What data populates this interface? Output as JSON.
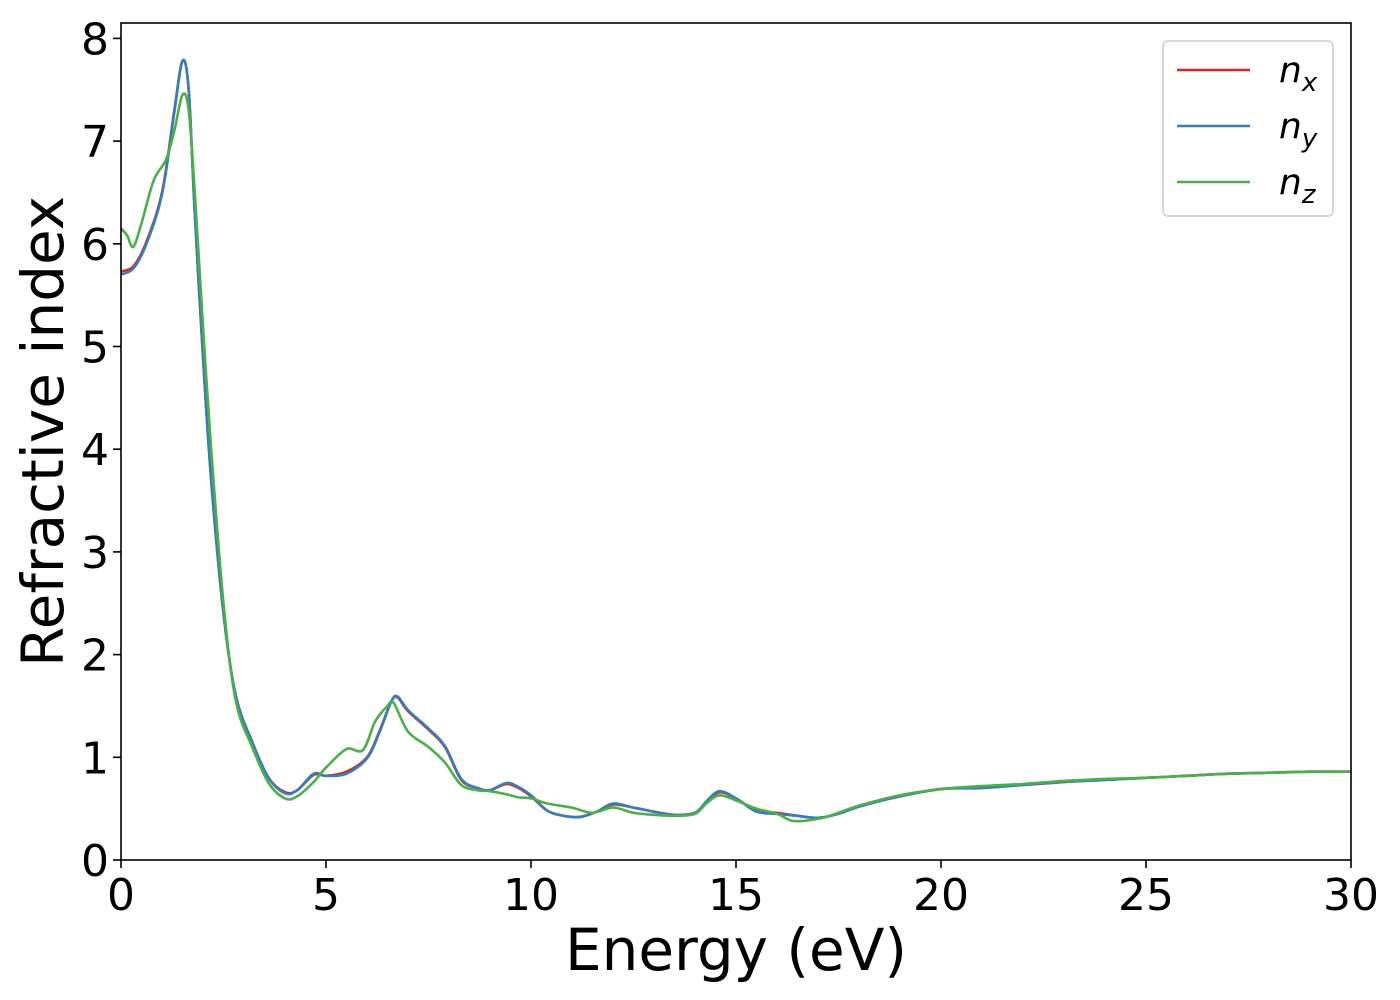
{
  "chart_data": {
    "type": "line",
    "title": "",
    "xlabel": "Energy (eV)",
    "ylabel": "Refractive index",
    "xlim": [
      0,
      30
    ],
    "ylim": [
      0,
      8.15
    ],
    "xticks": [
      0,
      5,
      10,
      15,
      20,
      25,
      30
    ],
    "yticks": [
      0,
      1,
      2,
      3,
      4,
      5,
      6,
      7,
      8
    ],
    "grid": false,
    "legend_position": "top-right",
    "series": [
      {
        "name": "n",
        "subscript": "x",
        "color": "#d62728",
        "points": [
          [
            0,
            5.73
          ],
          [
            0.3,
            5.78
          ],
          [
            0.6,
            6.0
          ],
          [
            1.0,
            6.5
          ],
          [
            1.3,
            7.3
          ],
          [
            1.5,
            7.78
          ],
          [
            1.65,
            7.5
          ],
          [
            1.8,
            6.3
          ],
          [
            2.0,
            4.9
          ],
          [
            2.2,
            3.7
          ],
          [
            2.5,
            2.4
          ],
          [
            2.8,
            1.6
          ],
          [
            3.2,
            1.15
          ],
          [
            3.6,
            0.8
          ],
          [
            4.0,
            0.66
          ],
          [
            4.3,
            0.68
          ],
          [
            4.7,
            0.83
          ],
          [
            5.0,
            0.82
          ],
          [
            5.5,
            0.86
          ],
          [
            6.0,
            1.0
          ],
          [
            6.3,
            1.25
          ],
          [
            6.6,
            1.55
          ],
          [
            6.75,
            1.58
          ],
          [
            7.0,
            1.45
          ],
          [
            7.5,
            1.27
          ],
          [
            7.9,
            1.1
          ],
          [
            8.3,
            0.78
          ],
          [
            8.7,
            0.7
          ],
          [
            9.0,
            0.68
          ],
          [
            9.4,
            0.74
          ],
          [
            9.7,
            0.7
          ],
          [
            10.0,
            0.62
          ],
          [
            10.4,
            0.48
          ],
          [
            10.8,
            0.43
          ],
          [
            11.2,
            0.42
          ],
          [
            11.6,
            0.47
          ],
          [
            12.0,
            0.54
          ],
          [
            12.5,
            0.51
          ],
          [
            13.0,
            0.47
          ],
          [
            13.5,
            0.44
          ],
          [
            14.0,
            0.46
          ],
          [
            14.3,
            0.57
          ],
          [
            14.6,
            0.66
          ],
          [
            15.0,
            0.6
          ],
          [
            15.5,
            0.48
          ],
          [
            16.0,
            0.46
          ],
          [
            16.5,
            0.43
          ],
          [
            17.0,
            0.41
          ],
          [
            17.5,
            0.45
          ],
          [
            18.0,
            0.52
          ],
          [
            19.0,
            0.62
          ],
          [
            20.0,
            0.69
          ],
          [
            21.0,
            0.71
          ],
          [
            22.0,
            0.73
          ],
          [
            23.0,
            0.76
          ],
          [
            24.0,
            0.78
          ],
          [
            25.0,
            0.8
          ],
          [
            26.0,
            0.82
          ],
          [
            27.0,
            0.84
          ],
          [
            28.0,
            0.85
          ],
          [
            29.0,
            0.86
          ],
          [
            30.0,
            0.86
          ]
        ]
      },
      {
        "name": "n",
        "subscript": "y",
        "color": "#377eb8",
        "points": [
          [
            0,
            5.7
          ],
          [
            0.3,
            5.76
          ],
          [
            0.6,
            5.98
          ],
          [
            1.0,
            6.48
          ],
          [
            1.3,
            7.28
          ],
          [
            1.5,
            7.78
          ],
          [
            1.65,
            7.5
          ],
          [
            1.8,
            6.3
          ],
          [
            2.0,
            4.9
          ],
          [
            2.2,
            3.7
          ],
          [
            2.5,
            2.4
          ],
          [
            2.8,
            1.6
          ],
          [
            3.2,
            1.15
          ],
          [
            3.6,
            0.8
          ],
          [
            4.0,
            0.65
          ],
          [
            4.3,
            0.68
          ],
          [
            4.7,
            0.84
          ],
          [
            5.0,
            0.82
          ],
          [
            5.5,
            0.84
          ],
          [
            6.0,
            0.99
          ],
          [
            6.3,
            1.24
          ],
          [
            6.6,
            1.55
          ],
          [
            6.75,
            1.59
          ],
          [
            7.0,
            1.46
          ],
          [
            7.5,
            1.28
          ],
          [
            7.9,
            1.11
          ],
          [
            8.3,
            0.79
          ],
          [
            8.7,
            0.7
          ],
          [
            9.0,
            0.68
          ],
          [
            9.4,
            0.75
          ],
          [
            9.7,
            0.71
          ],
          [
            10.0,
            0.63
          ],
          [
            10.4,
            0.48
          ],
          [
            10.8,
            0.43
          ],
          [
            11.2,
            0.42
          ],
          [
            11.6,
            0.47
          ],
          [
            12.0,
            0.55
          ],
          [
            12.5,
            0.51
          ],
          [
            13.0,
            0.47
          ],
          [
            13.5,
            0.44
          ],
          [
            14.0,
            0.46
          ],
          [
            14.3,
            0.58
          ],
          [
            14.6,
            0.67
          ],
          [
            15.0,
            0.6
          ],
          [
            15.5,
            0.47
          ],
          [
            16.0,
            0.45
          ],
          [
            16.5,
            0.43
          ],
          [
            17.0,
            0.41
          ],
          [
            17.5,
            0.45
          ],
          [
            18.0,
            0.52
          ],
          [
            19.0,
            0.62
          ],
          [
            20.0,
            0.69
          ],
          [
            21.0,
            0.7
          ],
          [
            22.0,
            0.73
          ],
          [
            23.0,
            0.76
          ],
          [
            24.0,
            0.78
          ],
          [
            25.0,
            0.8
          ],
          [
            26.0,
            0.82
          ],
          [
            27.0,
            0.84
          ],
          [
            28.0,
            0.85
          ],
          [
            29.0,
            0.86
          ],
          [
            30.0,
            0.86
          ]
        ]
      },
      {
        "name": "n",
        "subscript": "z",
        "color": "#4daf4a",
        "points": [
          [
            0,
            6.15
          ],
          [
            0.15,
            6.08
          ],
          [
            0.3,
            5.97
          ],
          [
            0.5,
            6.2
          ],
          [
            0.8,
            6.62
          ],
          [
            1.1,
            6.82
          ],
          [
            1.3,
            7.1
          ],
          [
            1.5,
            7.45
          ],
          [
            1.65,
            7.3
          ],
          [
            1.8,
            6.5
          ],
          [
            2.0,
            5.2
          ],
          [
            2.2,
            4.0
          ],
          [
            2.5,
            2.5
          ],
          [
            2.8,
            1.55
          ],
          [
            3.2,
            1.1
          ],
          [
            3.6,
            0.75
          ],
          [
            4.0,
            0.6
          ],
          [
            4.3,
            0.62
          ],
          [
            4.7,
            0.76
          ],
          [
            5.0,
            0.9
          ],
          [
            5.5,
            1.08
          ],
          [
            5.9,
            1.07
          ],
          [
            6.2,
            1.35
          ],
          [
            6.5,
            1.5
          ],
          [
            6.65,
            1.53
          ],
          [
            7.0,
            1.25
          ],
          [
            7.5,
            1.1
          ],
          [
            7.9,
            0.95
          ],
          [
            8.3,
            0.73
          ],
          [
            8.7,
            0.68
          ],
          [
            9.0,
            0.67
          ],
          [
            9.4,
            0.64
          ],
          [
            9.7,
            0.61
          ],
          [
            10.0,
            0.6
          ],
          [
            10.4,
            0.55
          ],
          [
            11.0,
            0.51
          ],
          [
            11.5,
            0.46
          ],
          [
            12.0,
            0.51
          ],
          [
            12.5,
            0.46
          ],
          [
            13.0,
            0.44
          ],
          [
            13.5,
            0.43
          ],
          [
            14.0,
            0.45
          ],
          [
            14.3,
            0.56
          ],
          [
            14.6,
            0.63
          ],
          [
            15.0,
            0.58
          ],
          [
            15.5,
            0.5
          ],
          [
            16.0,
            0.45
          ],
          [
            16.4,
            0.38
          ],
          [
            17.0,
            0.4
          ],
          [
            17.5,
            0.46
          ],
          [
            18.0,
            0.53
          ],
          [
            19.0,
            0.63
          ],
          [
            20.0,
            0.69
          ],
          [
            21.0,
            0.72
          ],
          [
            22.0,
            0.74
          ],
          [
            23.0,
            0.77
          ],
          [
            24.0,
            0.79
          ],
          [
            25.0,
            0.8
          ],
          [
            26.0,
            0.82
          ],
          [
            27.0,
            0.84
          ],
          [
            28.0,
            0.85
          ],
          [
            29.0,
            0.86
          ],
          [
            30.0,
            0.86
          ]
        ]
      }
    ]
  }
}
